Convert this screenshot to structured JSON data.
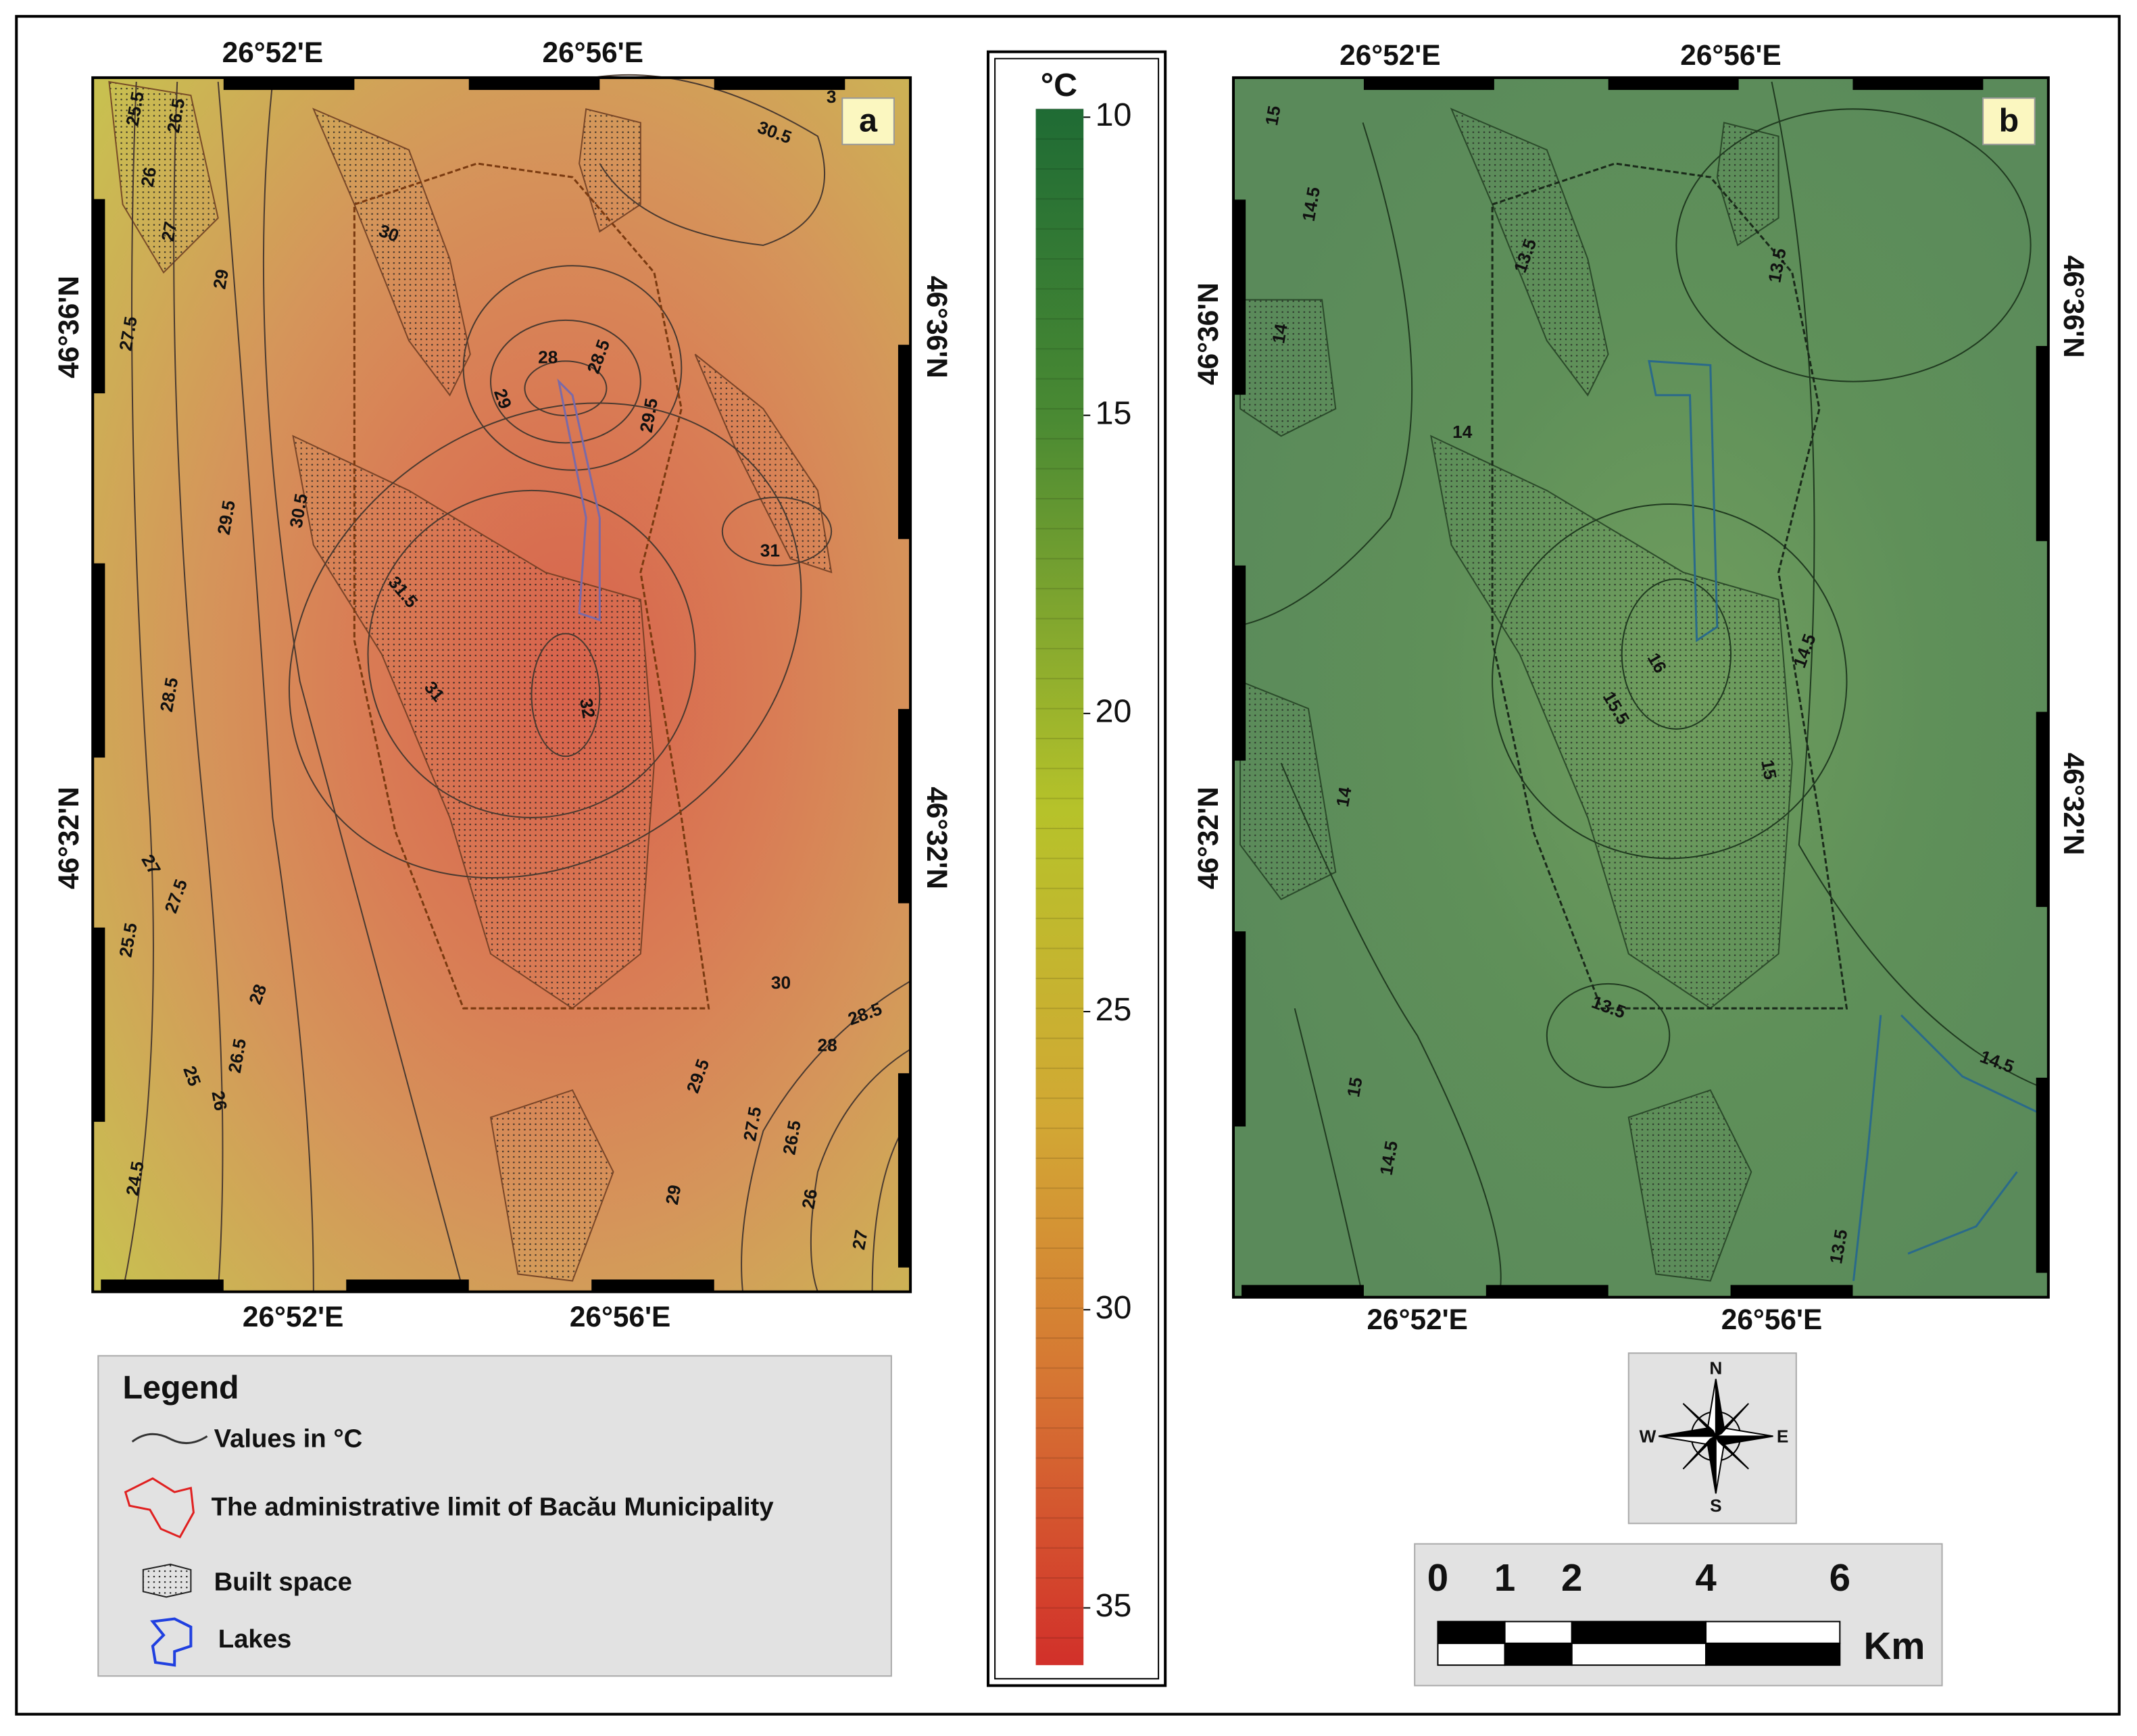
{
  "panel_a": {
    "label": "a",
    "top_x_labels": [
      "26°52'E",
      "26°56'E"
    ],
    "bottom_x_labels": [
      "26°52'E",
      "26°56'E"
    ],
    "left_y_labels": [
      "46°36'N",
      "46°32'N"
    ],
    "right_y_labels": [
      "46°36'N",
      "46°32'N"
    ],
    "contour_labels": [
      25.5,
      26.5,
      26,
      27,
      29,
      27.5,
      30,
      28,
      28.5,
      29,
      29.5,
      30.5,
      3,
      29.5,
      30.5,
      31,
      31.5,
      28.5,
      31,
      32,
      27,
      27.5,
      25.5,
      28,
      30,
      28.5,
      28,
      25,
      26.5,
      26,
      29.5,
      27.5,
      26.5,
      24.5,
      29,
      26,
      27
    ]
  },
  "panel_b": {
    "label": "b",
    "top_x_labels": [
      "26°52'E",
      "26°56'E"
    ],
    "bottom_x_labels": [
      "26°52'E",
      "26°56'E"
    ],
    "left_y_labels": [
      "46°36'N",
      "46°32'N"
    ],
    "right_y_labels": [
      "46°36'N",
      "46°32'N"
    ],
    "contour_labels": [
      15,
      14.5,
      13.5,
      13.5,
      14,
      14,
      16,
      15.5,
      14.5,
      15,
      14,
      13.5,
      14.5,
      15,
      14.5,
      13.5
    ]
  },
  "colorbar": {
    "unit": "°C",
    "ticks": [
      10,
      15,
      20,
      25,
      30,
      35
    ]
  },
  "legend": {
    "title": "Legend",
    "items": [
      "Values in °C",
      "The administrative limit of Bacău Municipality",
      "Built space",
      "Lakes"
    ]
  },
  "compass": {
    "n": "N",
    "e": "E",
    "s": "S",
    "w": "W"
  },
  "scale_bar": {
    "ticks": [
      0,
      1,
      2,
      4,
      6
    ],
    "unit": "Km"
  }
}
